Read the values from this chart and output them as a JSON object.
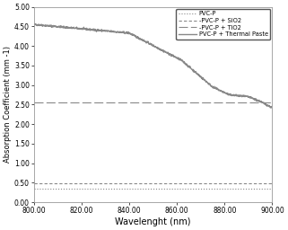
{
  "title": "",
  "xlabel": "Wavelenght (nm)",
  "ylabel": "Absorption Coefficient (mm -1)",
  "xlim": [
    800,
    900
  ],
  "ylim": [
    0.0,
    5.0
  ],
  "xticks": [
    800,
    820,
    840,
    860,
    880,
    900
  ],
  "yticks": [
    0.0,
    0.5,
    1.0,
    1.5,
    2.0,
    2.5,
    3.0,
    3.5,
    4.0,
    4.5,
    5.0
  ],
  "pvc_p_value": 0.34,
  "pvc_p_sio2_value": 0.48,
  "pvc_p_tio2_value": 2.55,
  "legend_labels": [
    "PVC-P",
    "-PVC-P + SiO2",
    "-PVC-P + TiO2",
    "PVC-P + Thermal Paste"
  ],
  "line_color": "#888888",
  "background_color": "#ffffff",
  "tick_fontsize": 5.5,
  "xlabel_fontsize": 7.0,
  "ylabel_fontsize": 6.0,
  "legend_fontsize": 4.8
}
